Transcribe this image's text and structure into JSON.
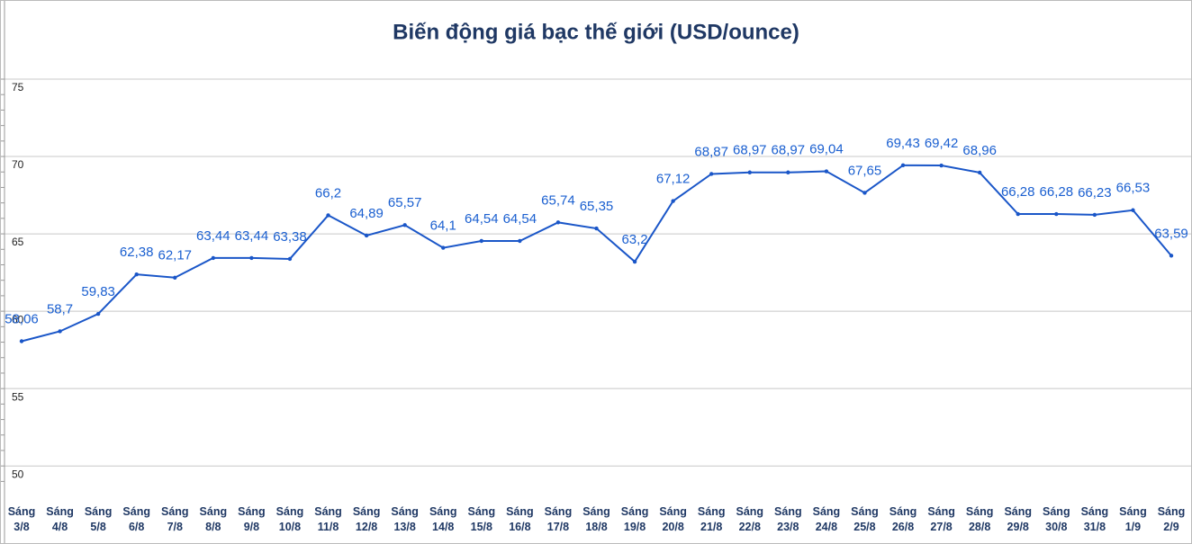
{
  "chart_data": {
    "type": "line",
    "title": "Biến động giá bạc thế giới (USD/ounce)",
    "categories": [
      "Sáng 3/8",
      "Sáng 4/8",
      "Sáng 5/8",
      "Sáng 6/8",
      "Sáng 7/8",
      "Sáng 8/8",
      "Sáng 9/8",
      "Sáng 10/8",
      "Sáng 11/8",
      "Sáng 12/8",
      "Sáng 13/8",
      "Sáng 14/8",
      "Sáng 15/8",
      "Sáng 16/8",
      "Sáng 17/8",
      "Sáng 18/8",
      "Sáng 19/8",
      "Sáng 20/8",
      "Sáng 21/8",
      "Sáng 22/8",
      "Sáng 23/8",
      "Sáng 24/8",
      "Sáng 25/8",
      "Sáng 26/8",
      "Sáng 27/8",
      "Sáng 28/8",
      "Sáng 29/8",
      "Sáng 30/8",
      "Sáng 31/8",
      "Sáng 1/9",
      "Sáng 2/9"
    ],
    "values": [
      58.06,
      58.7,
      59.83,
      62.38,
      62.17,
      63.44,
      63.44,
      63.38,
      66.2,
      64.89,
      65.57,
      64.1,
      64.54,
      64.54,
      65.74,
      65.35,
      63.2,
      67.12,
      68.87,
      68.97,
      68.97,
      69.04,
      67.65,
      69.43,
      69.42,
      68.96,
      66.28,
      66.28,
      66.23,
      66.53,
      63.59
    ],
    "value_labels": [
      "58,06",
      "58,7",
      "59,83",
      "62,38",
      "62,17",
      "63,44",
      "63,44",
      "63,38",
      "66,2",
      "64,89",
      "65,57",
      "64,1",
      "64,54",
      "64,54",
      "65,74",
      "65,35",
      "63,2",
      "67,12",
      "68,87",
      "68,97",
      "68,97",
      "69,04",
      "67,65",
      "69,43",
      "69,42",
      "68,96",
      "66,28",
      "66,28",
      "66,23",
      "66,53",
      "63,59"
    ],
    "color": "#1a56c8",
    "ylim": [
      48.5,
      75
    ],
    "yticks": [
      50,
      55,
      60,
      65,
      70,
      75
    ],
    "grid": true
  }
}
